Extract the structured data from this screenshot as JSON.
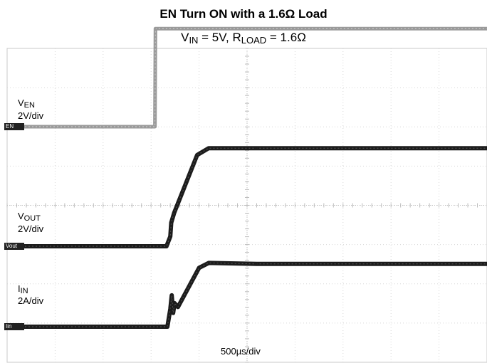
{
  "chart_data": {
    "type": "line",
    "title": "EN Turn ON with a 1.6Ω Load",
    "subtitle": {
      "v_label": "V",
      "v_sub": "IN",
      "v_value": " = 5V, ",
      "r_label": "R",
      "r_sub": "LOAD",
      "r_value": " = 1.6Ω"
    },
    "timebase": "500µs/div",
    "grid": true,
    "divisions": {
      "x": 10,
      "y": 8
    },
    "x_units": "µs",
    "xlim": [
      0,
      5000
    ],
    "series": [
      {
        "name": "EN",
        "label": "V",
        "label_sub": "EN",
        "scale": "2V/div",
        "marker": "EN",
        "color": "#9a9a9a",
        "x": [
          0,
          1540,
          1545,
          5000
        ],
        "y": [
          0,
          0,
          5,
          5
        ]
      },
      {
        "name": "Vout",
        "label": "V",
        "label_sub": "OUT",
        "scale": "2V/div",
        "marker": "Vout",
        "color": "#1c1c1c",
        "x": [
          0,
          1660,
          1700,
          1710,
          1740,
          1980,
          2100,
          2600,
          5000
        ],
        "y": [
          0,
          0,
          0.5,
          1.2,
          1.7,
          4.65,
          5.0,
          5.0,
          5.0
        ]
      },
      {
        "name": "Iin",
        "label": "I",
        "label_sub": "IN",
        "scale": "2A/div",
        "marker": "Iin",
        "color": "#1c1c1c",
        "x": [
          0,
          1670,
          1700,
          1715,
          1730,
          1745,
          1780,
          2000,
          2100,
          2600,
          5000
        ],
        "y": [
          0,
          0,
          0.9,
          1.6,
          0.7,
          1.2,
          1.0,
          3.0,
          3.25,
          3.2,
          3.2
        ]
      }
    ]
  }
}
